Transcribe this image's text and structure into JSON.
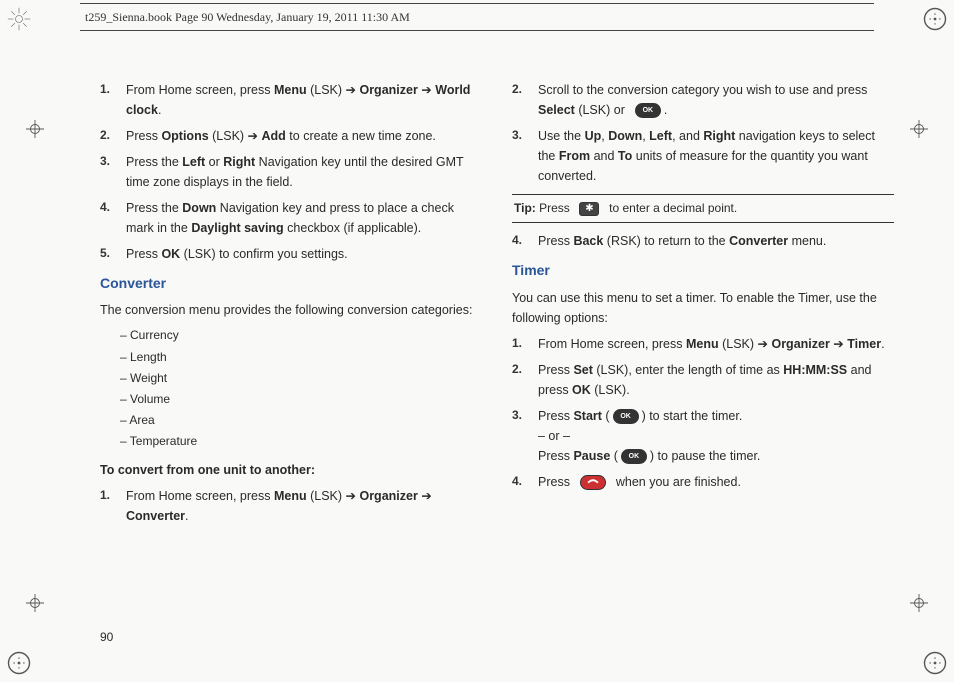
{
  "header": "t259_Sienna.book  Page 90  Wednesday, January 19, 2011  11:30 AM",
  "page_number": "90",
  "left_column": {
    "steps_a": [
      {
        "n": "1.",
        "html": "From Home screen, press <b>Menu</b> (LSK) ➔ <b>Organizer</b> ➔ <b>World clock</b>."
      },
      {
        "n": "2.",
        "html": "Press <b>Options</b> (LSK) ➔ <b>Add</b> to create a new time zone."
      },
      {
        "n": "3.",
        "html": "Press the <b>Left</b> or <b>Right</b> Navigation key until the desired GMT time zone displays in the field."
      },
      {
        "n": "4.",
        "html": "Press the <b>Down</b> Navigation key and press to place a check mark in the <b>Daylight saving</b> checkbox (if applicable)."
      },
      {
        "n": "5.",
        "html": "Press <b>OK</b> (LSK) to confirm you settings."
      }
    ],
    "converter_title": "Converter",
    "converter_intro": "The conversion menu provides the following conversion categories:",
    "sublist": [
      "– Currency",
      "– Length",
      "– Weight",
      "– Volume",
      "– Area",
      "– Temperature"
    ],
    "sub_head": "To convert from one unit to another:",
    "steps_b": [
      {
        "n": "1.",
        "html": "From Home screen, press <b>Menu</b> (LSK) ➔ <b>Organizer</b> ➔ <b>Converter</b>."
      }
    ]
  },
  "right_column": {
    "steps_a": [
      {
        "n": "2.",
        "html": "Scroll to the conversion category you wish to use and press <b>Select</b> (LSK) or &nbsp;<span class='ok-btn'>OK</span>."
      },
      {
        "n": "3.",
        "html": "Use the <b>Up</b>, <b>Down</b>, <b>Left</b>, and <b>Right</b> navigation keys to select the <b>From</b> and <b>To</b> units of measure for the quantity you want converted."
      }
    ],
    "tip": "<b>Tip:</b> Press &nbsp;<span class='star-btn'>✱</span>&nbsp; to enter a decimal point.",
    "steps_b": [
      {
        "n": "4.",
        "html": "Press <b>Back</b> (RSK) to return to the <b>Converter</b> menu."
      }
    ],
    "timer_title": "Timer",
    "timer_intro": "You can use this menu to set a timer. To enable the Timer, use the following options:",
    "steps_c": [
      {
        "n": "1.",
        "html": "From Home screen, press <b>Menu</b> (LSK) ➔ <b>Organizer</b> ➔ <b>Timer</b>."
      },
      {
        "n": "2.",
        "html": "Press <b>Set</b> (LSK), enter the length of time as <b>HH:MM:SS</b> and press <b>OK</b> (LSK)."
      },
      {
        "n": "3.",
        "html": "Press <b>Start</b> (<span class='ok-btn'>OK</span>) to start the timer.<br>– or –<br>Press <b>Pause</b> (<span class='ok-btn'>OK</span>) to pause the timer."
      },
      {
        "n": "4.",
        "html": "Press &nbsp;<span class='end-btn'><svg viewBox='0 0 20 10'><path d='M2 5 Q6 1 10 1 Q14 1 18 5 L16 7 Q13 4 10 4 Q7 4 4 7 Z' fill='white'/></svg></span>&nbsp; when you are finished."
      }
    ]
  },
  "styling": {
    "body_bg": "#f9f9f7",
    "text_color": "#2a2a2a",
    "heading_color": "#2a5599",
    "font_size_body": 12.5,
    "font_size_heading": 14
  }
}
